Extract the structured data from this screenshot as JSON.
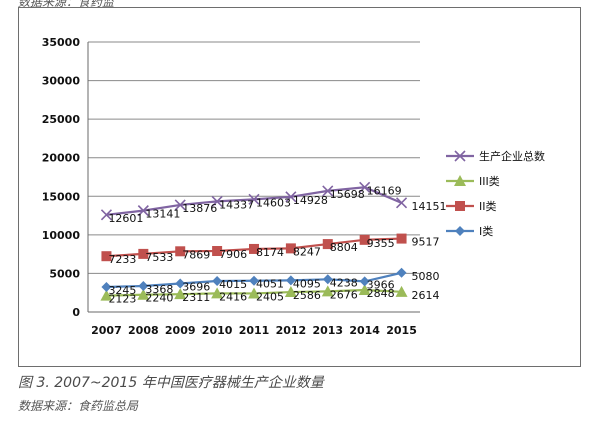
{
  "header_fragment": "数据来源：食药监",
  "chart_data": {
    "type": "line",
    "title": "",
    "xlabel": "",
    "ylabel": "",
    "x": [
      "2007",
      "2008",
      "2009",
      "2010",
      "2011",
      "2012",
      "2013",
      "2014",
      "2015"
    ],
    "ylim": [
      0,
      35000
    ],
    "yticks": [
      "0",
      "5000",
      "10000",
      "15000",
      "20000",
      "25000",
      "30000",
      "35000"
    ],
    "grid": true,
    "legend_position": "right",
    "series": [
      {
        "name": "生产企业总数",
        "values": [
          12601,
          13141,
          13876,
          14337,
          14603,
          14928,
          15698,
          16169,
          14151
        ],
        "labels": [
          "12601",
          "13141",
          "13876",
          "14337",
          "14603",
          "14928",
          "15698",
          "16169",
          "14151"
        ],
        "color": "#8064a2",
        "marker": "x"
      },
      {
        "name": "III类",
        "values": [
          2123,
          2240,
          2311,
          2416,
          2405,
          2586,
          2676,
          2848,
          2614
        ],
        "labels": [
          "2123",
          "2240",
          "2311",
          "2416",
          "2405",
          "2586",
          "2676",
          "2848",
          "2614"
        ],
        "color": "#9bbb59",
        "marker": "triangle"
      },
      {
        "name": "II类",
        "values": [
          7233,
          7533,
          7869,
          7906,
          8174,
          8247,
          8804,
          9355,
          9517
        ],
        "labels": [
          "7233",
          "7533",
          "7869",
          "7906",
          "8174",
          "8247",
          "8804",
          "9355",
          "9517"
        ],
        "color": "#c0504d",
        "marker": "square"
      },
      {
        "name": "I类",
        "values": [
          3245,
          3368,
          3696,
          4015,
          4051,
          4095,
          4238,
          3966,
          5080
        ],
        "labels": [
          "3245",
          "3368",
          "3696",
          "4015",
          "4051",
          "4095",
          "4238",
          "3966",
          "5080"
        ],
        "color": "#4f81bd",
        "marker": "diamond"
      }
    ]
  },
  "figure_caption": "图 3. 2007~2015 年中国医疗器械生产企业数量",
  "source_note": "数据来源：食药监总局"
}
